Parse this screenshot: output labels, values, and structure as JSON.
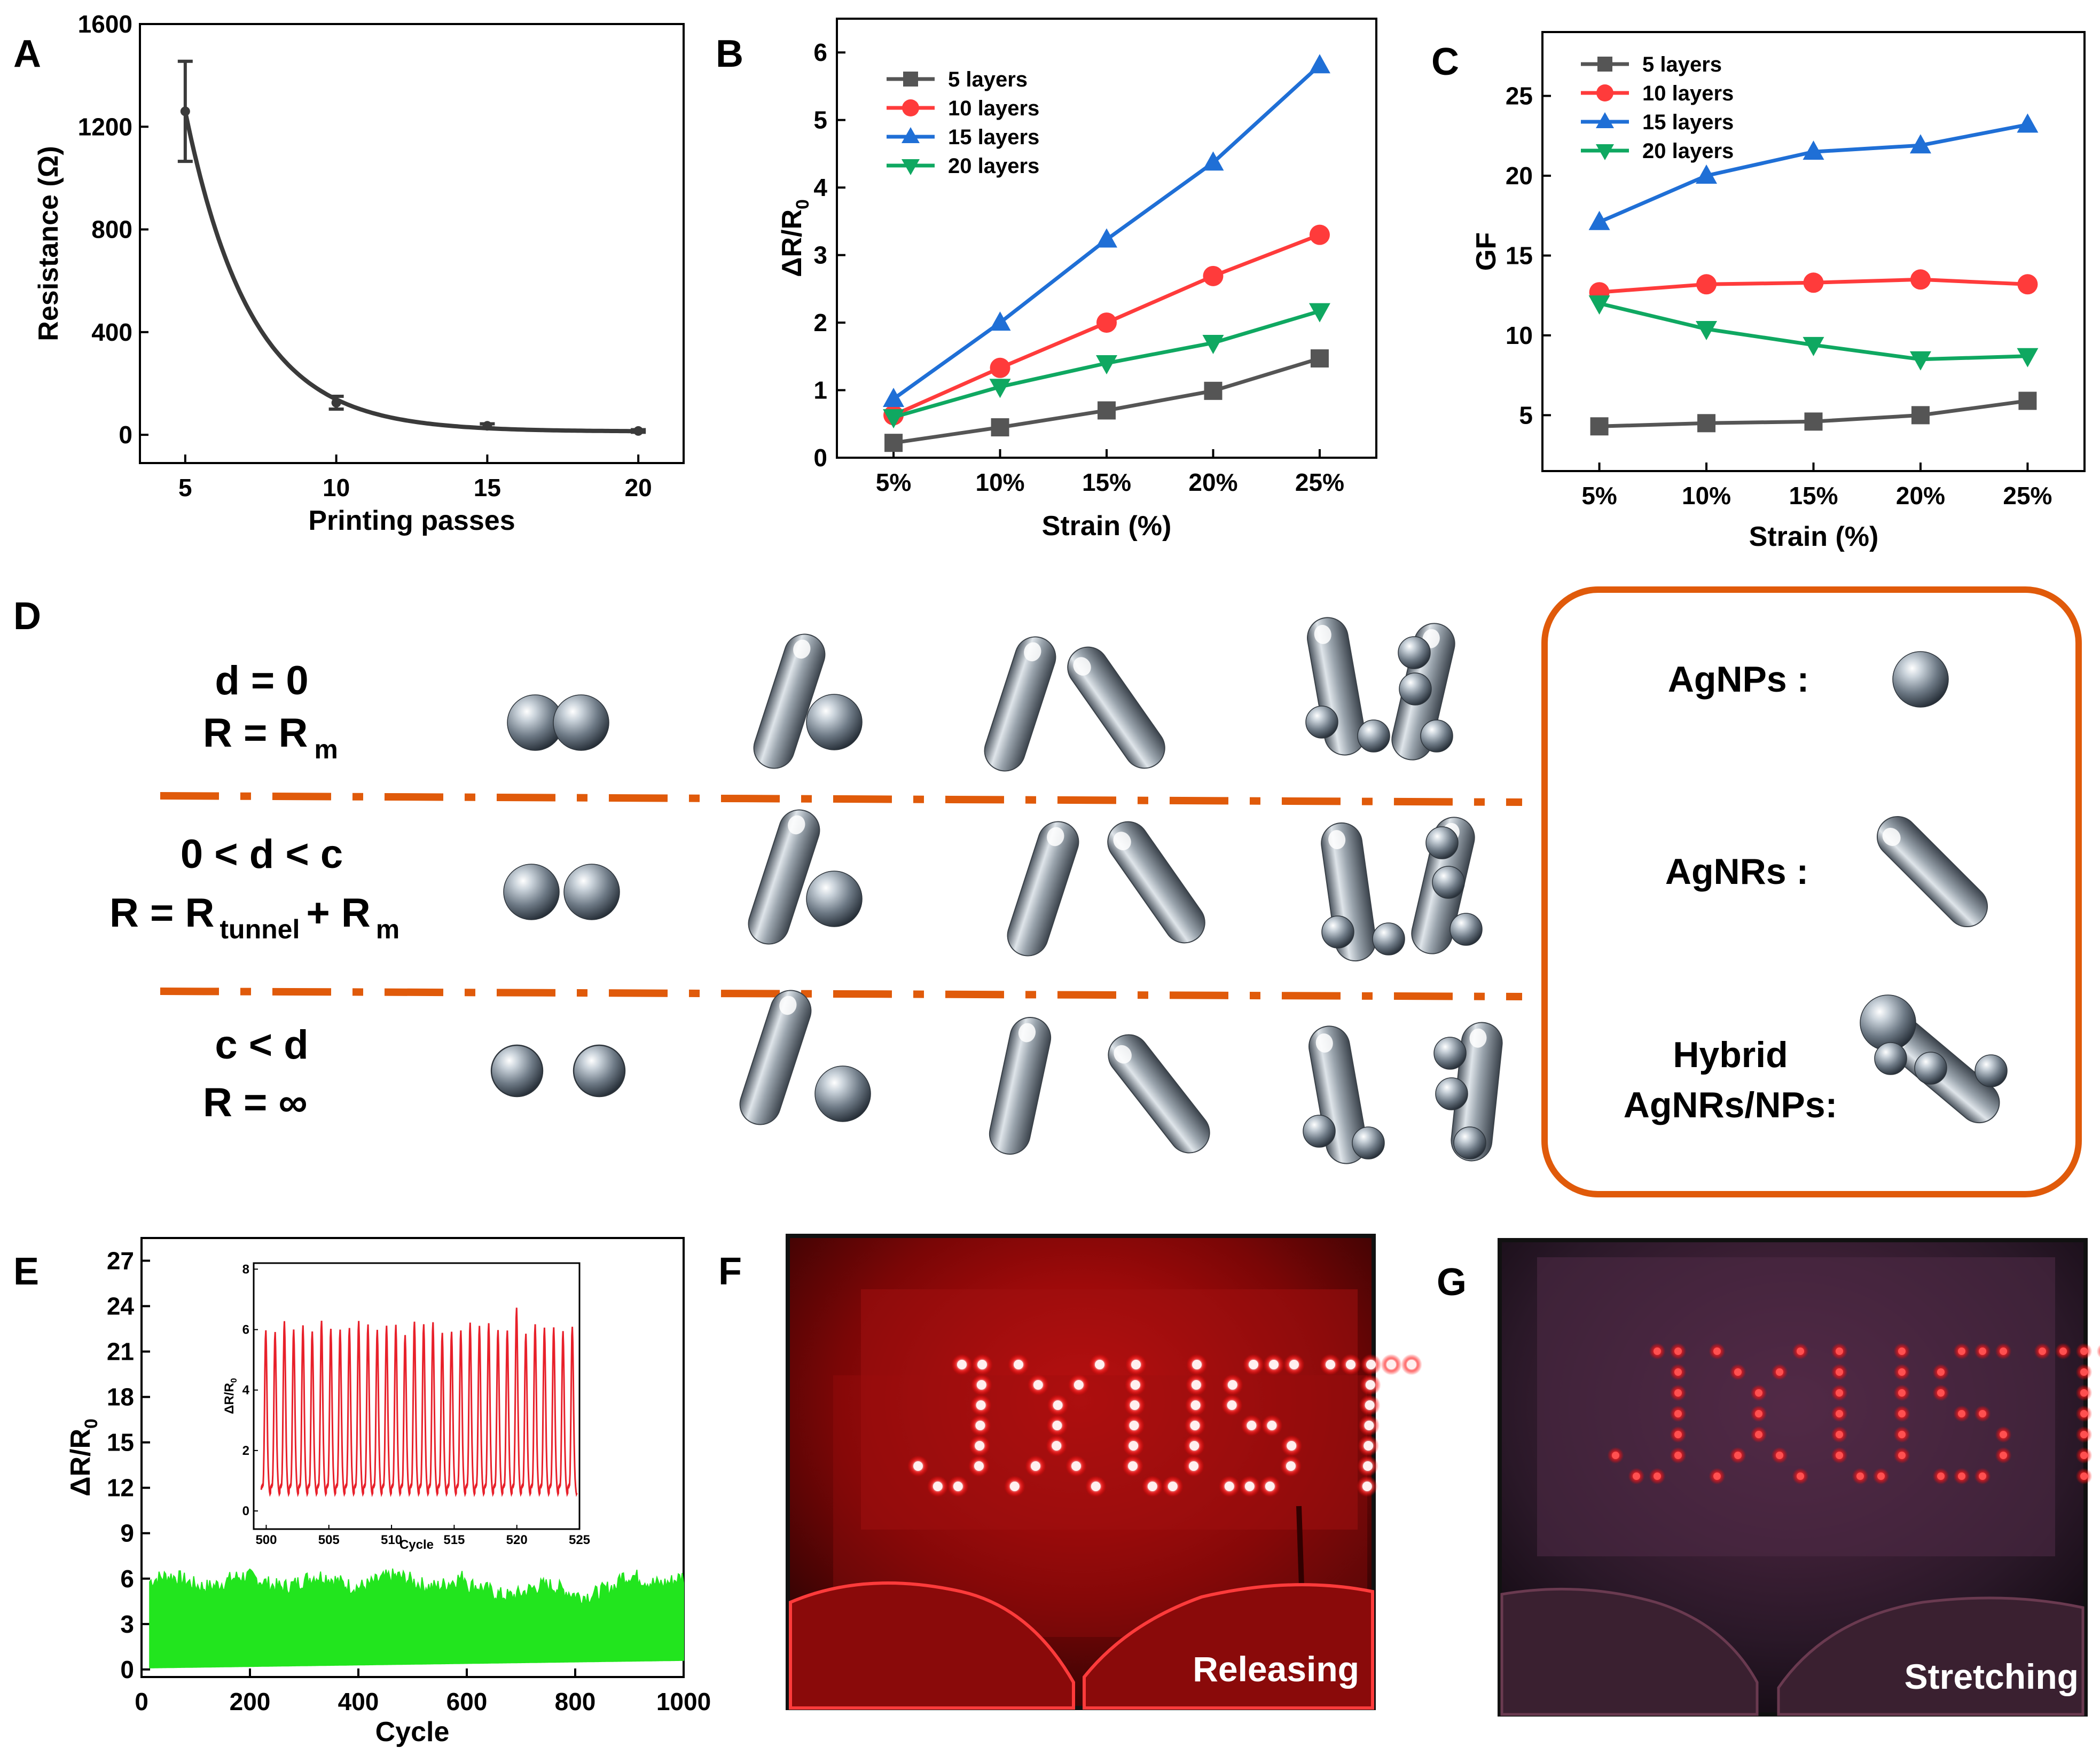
{
  "panel_labels": {
    "a": "A",
    "b": "B",
    "c": "C",
    "d": "D",
    "e": "E",
    "f": "F",
    "g": "G"
  },
  "chart_data": [
    {
      "id": "A",
      "type": "line",
      "x": [
        5,
        10,
        15,
        20
      ],
      "values": [
        1260,
        125,
        35,
        15
      ],
      "error": [
        195,
        25,
        8,
        5
      ],
      "xticks": [
        "5",
        "10",
        "15",
        "20"
      ],
      "yticks": [
        "0",
        "400",
        "800",
        "1200",
        "1600"
      ],
      "xlim": [
        3.5,
        21.5
      ],
      "ylim": [
        -110,
        1600
      ],
      "xlabel": "Printing passes",
      "ylabel": "Resistance (Ω)",
      "color": "#3a3a3a"
    },
    {
      "id": "B",
      "type": "line",
      "categories": [
        "5%",
        "10%",
        "15%",
        "20%",
        "25%"
      ],
      "series": [
        {
          "name": "5   layers",
          "color": "#555555",
          "marker": "square",
          "values": [
            0.22,
            0.45,
            0.7,
            0.99,
            1.47
          ]
        },
        {
          "name": "10 layers",
          "color": "#ff3b3b",
          "marker": "circle",
          "values": [
            0.63,
            1.33,
            2.0,
            2.69,
            3.3
          ]
        },
        {
          "name": "15 layers",
          "color": "#1f6fd6",
          "marker": "triangle-up",
          "values": [
            0.87,
            2.0,
            3.23,
            4.37,
            5.81
          ]
        },
        {
          "name": "20 layers",
          "color": "#0fa861",
          "marker": "triangle-down",
          "values": [
            0.6,
            1.05,
            1.4,
            1.7,
            2.17
          ]
        }
      ],
      "yticks": [
        "0",
        "1",
        "2",
        "3",
        "4",
        "5",
        "6"
      ],
      "ylim": [
        0,
        6.5
      ],
      "xlabel": "Strain (%)",
      "ylabel": "ΔR/R",
      "ylabel_sub": "0"
    },
    {
      "id": "C",
      "type": "line",
      "categories": [
        "5%",
        "10%",
        "15%",
        "20%",
        "25%"
      ],
      "series": [
        {
          "name": "5   layers",
          "color": "#555555",
          "marker": "square",
          "values": [
            4.3,
            4.5,
            4.6,
            5.0,
            5.9
          ]
        },
        {
          "name": "10 layers",
          "color": "#ff3b3b",
          "marker": "circle",
          "values": [
            12.7,
            13.2,
            13.3,
            13.5,
            13.2
          ]
        },
        {
          "name": "15 layers",
          "color": "#1f6fd6",
          "marker": "triangle-up",
          "values": [
            17.1,
            20.0,
            21.5,
            21.9,
            23.2
          ]
        },
        {
          "name": "20 layers",
          "color": "#0fa861",
          "marker": "triangle-down",
          "values": [
            12.0,
            10.4,
            9.4,
            8.5,
            8.7
          ]
        }
      ],
      "yticks": [
        "5",
        "10",
        "15",
        "20",
        "25"
      ],
      "ylim": [
        1.5,
        29
      ],
      "xlabel": "Strain (%)",
      "ylabel": "GF"
    },
    {
      "id": "E",
      "type": "area",
      "xlim": [
        0,
        1000
      ],
      "ylim": [
        -0.5,
        28.5
      ],
      "xticks": [
        "0",
        "200",
        "400",
        "600",
        "800",
        "1000"
      ],
      "yticks": [
        "0",
        "3",
        "6",
        "9",
        "12",
        "15",
        "18",
        "21",
        "24",
        "27"
      ],
      "band_lower": [
        0.1,
        0.6
      ],
      "band_upper_mean": 5.8,
      "xlabel": "Cycle",
      "ylabel": "ΔR/R",
      "ylabel_sub": "0",
      "color": "#22e51e",
      "inset": {
        "type": "line",
        "xlim": [
          499,
          525
        ],
        "ylim": [
          -0.6,
          8.2
        ],
        "xticks": [
          "500",
          "505",
          "510",
          "515",
          "520",
          "525"
        ],
        "yticks": [
          "0",
          "2",
          "4",
          "6",
          "8"
        ],
        "xlabel": "Cycle",
        "ylabel": "ΔR/R",
        "ylabel_sub": "0",
        "peak": 6.0,
        "trough": 0.7,
        "cycles": 34,
        "color": "#e8202a"
      }
    }
  ],
  "mechanism": {
    "rows": [
      {
        "line1": "d = 0",
        "line2_main": "R = R",
        "line2_sub": "m",
        "line2_tail": ""
      },
      {
        "line1": "0 < d < c",
        "line2_main": "R = R",
        "line2_sub": "tunnel",
        "line2_tail": "+ R",
        "line2_sub2": "m"
      },
      {
        "line1": "c < d",
        "line2_main": "R = ∞",
        "line2_sub": "",
        "line2_tail": ""
      }
    ],
    "legend": {
      "nps": "AgNPs :",
      "nrs": "AgNRs :",
      "hybrid_line1": "Hybrid",
      "hybrid_line2": "AgNRs/NPs:"
    },
    "accent_color": "#e05a0a"
  },
  "photos": {
    "f_label": "Releasing",
    "g_label": "Stretching",
    "led_color": "#ff2a2a"
  }
}
